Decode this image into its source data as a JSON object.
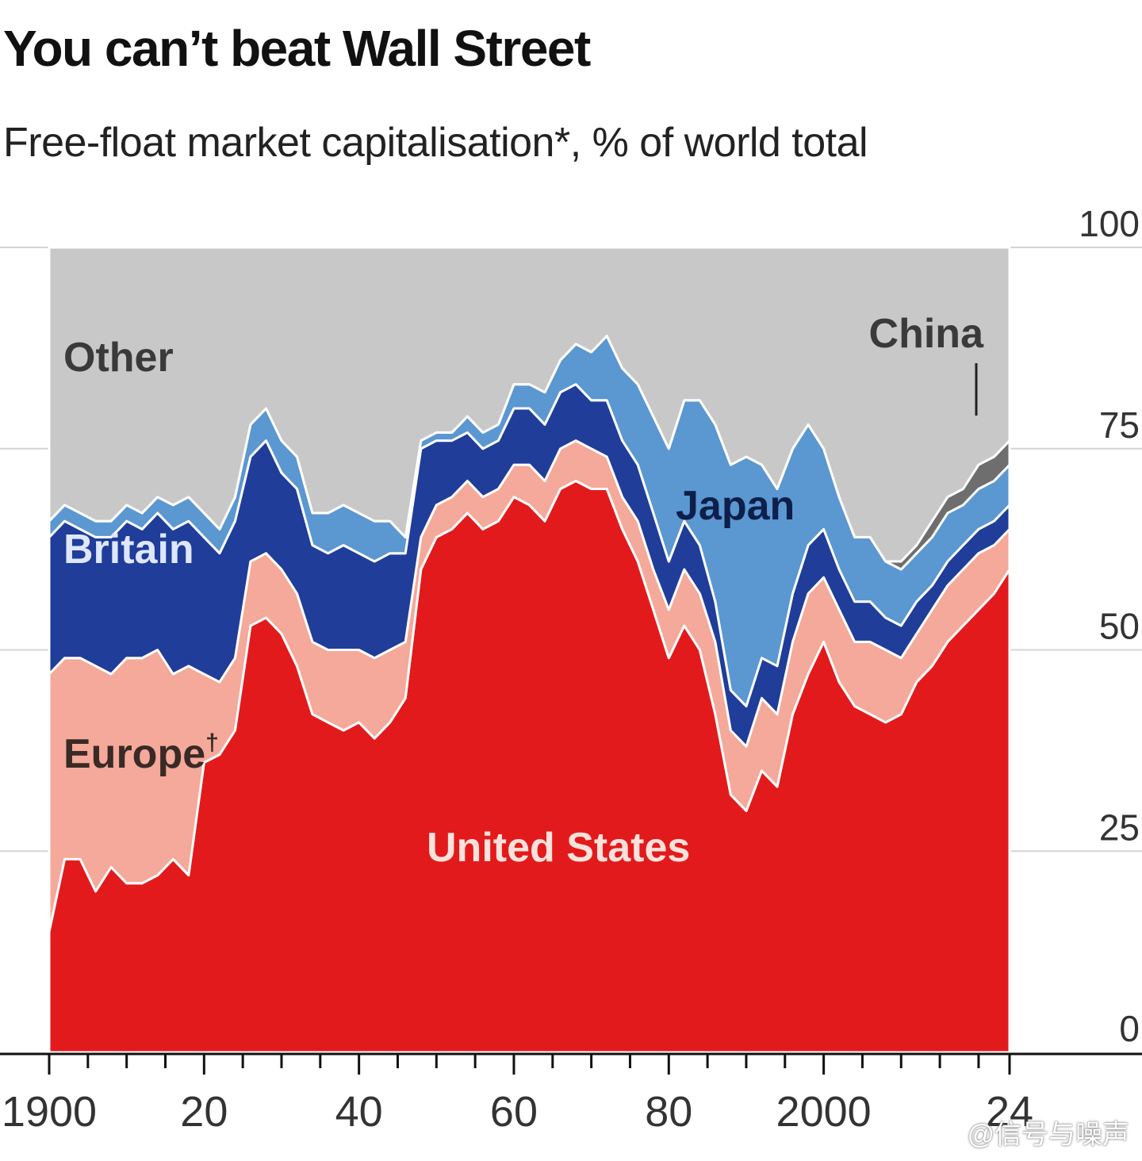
{
  "chart_data": {
    "type": "area",
    "stacked": true,
    "title": "You can’t beat Wall Street",
    "subtitle": "Free-float market capitalisation*, % of world total",
    "xlabel": "",
    "ylabel": "",
    "xlim": [
      1900,
      2024
    ],
    "ylim": [
      0,
      100
    ],
    "x_ticks_labeled": [
      "1900",
      "20",
      "40",
      "60",
      "80",
      "2000",
      "24"
    ],
    "x_tick_values": [
      1900,
      1920,
      1940,
      1960,
      1980,
      2000,
      2024
    ],
    "y_ticks": [
      "0",
      "25",
      "50",
      "75",
      "100"
    ],
    "y_tick_values": [
      0,
      25,
      50,
      75,
      100
    ],
    "y_axis_side": "right",
    "grid": "horizontal",
    "legend": "inline labels",
    "x": [
      1900,
      1902,
      1904,
      1906,
      1908,
      1910,
      1912,
      1914,
      1916,
      1918,
      1920,
      1922,
      1924,
      1926,
      1928,
      1930,
      1932,
      1934,
      1936,
      1938,
      1940,
      1942,
      1944,
      1946,
      1948,
      1950,
      1952,
      1954,
      1956,
      1958,
      1960,
      1962,
      1964,
      1966,
      1968,
      1970,
      1972,
      1974,
      1976,
      1978,
      1980,
      1982,
      1984,
      1986,
      1988,
      1990,
      1992,
      1994,
      1996,
      1998,
      2000,
      2002,
      2004,
      2006,
      2008,
      2010,
      2012,
      2014,
      2016,
      2018,
      2020,
      2022,
      2024
    ],
    "series": [
      {
        "name": "United States",
        "color": "#e31a1c",
        "values": [
          15,
          24,
          24,
          20,
          23,
          21,
          21,
          22,
          24,
          22,
          36,
          37,
          40,
          53,
          54,
          52,
          48,
          42,
          41,
          40,
          41,
          39,
          41,
          44,
          60,
          64,
          65,
          67,
          65,
          66,
          69,
          68,
          66,
          70,
          71,
          70,
          70,
          65,
          61,
          55,
          49,
          53,
          50,
          42,
          32,
          30,
          35,
          33,
          42,
          47,
          51,
          46,
          43,
          42,
          41,
          42,
          46,
          48,
          51,
          53,
          55,
          57,
          60
        ]
      },
      {
        "name": "Europe†",
        "color": "#f4a99a",
        "values": [
          32,
          25,
          25,
          28,
          24,
          28,
          28,
          28,
          23,
          26,
          11,
          9,
          9,
          8,
          8,
          8,
          9,
          9,
          9,
          10,
          9,
          10,
          9,
          7,
          4,
          4,
          4,
          4,
          4,
          4,
          4,
          5,
          5,
          5,
          5,
          5,
          4,
          4,
          5,
          5,
          6,
          7,
          7,
          9,
          8,
          8,
          9,
          9,
          9,
          10,
          8,
          9,
          8,
          9,
          9,
          7,
          6,
          7,
          7,
          7,
          7,
          6,
          5
        ]
      },
      {
        "name": "Britain",
        "color": "#1f3d99",
        "values": [
          17,
          17,
          16,
          16,
          17,
          17,
          16,
          17,
          18,
          18,
          17,
          16,
          17,
          13,
          14,
          12,
          13,
          12,
          12,
          13,
          12,
          12,
          12,
          11,
          11,
          8,
          7,
          6,
          6,
          6,
          7,
          7,
          7,
          7,
          7,
          6,
          7,
          7,
          7,
          7,
          6,
          6,
          6,
          5,
          5,
          5,
          5,
          6,
          6,
          6,
          6,
          5,
          5,
          5,
          4,
          4,
          4,
          3,
          3,
          3,
          3,
          3,
          3
        ]
      },
      {
        "name": "Japan",
        "color": "#5b97d1",
        "values": [
          2,
          2,
          2,
          2,
          2,
          2,
          2,
          2,
          3,
          3,
          3,
          3,
          3,
          4,
          4,
          4,
          4,
          4,
          5,
          5,
          5,
          5,
          4,
          2,
          1,
          1,
          1,
          2,
          2,
          2,
          3,
          3,
          4,
          4,
          5,
          6,
          8,
          9,
          10,
          12,
          14,
          15,
          18,
          22,
          28,
          31,
          24,
          22,
          18,
          15,
          10,
          9,
          8,
          8,
          7,
          7,
          6,
          6,
          6,
          5,
          5,
          5,
          5
        ]
      },
      {
        "name": "China",
        "color": "#6e6e6e",
        "values": [
          0,
          0,
          0,
          0,
          0,
          0,
          0,
          0,
          0,
          0,
          0,
          0,
          0,
          0,
          0,
          0,
          0,
          0,
          0,
          0,
          0,
          0,
          0,
          0,
          0,
          0,
          0,
          0,
          0,
          0,
          0,
          0,
          0,
          0,
          0,
          0,
          0,
          0,
          0,
          0,
          0,
          0,
          0,
          0,
          0,
          0,
          0,
          0,
          0,
          0,
          0,
          0,
          0,
          0,
          0,
          1,
          1,
          2,
          2,
          2,
          3,
          3,
          3
        ]
      },
      {
        "name": "Other",
        "color": "#c8c8c8",
        "values": [
          34,
          32,
          33,
          34,
          34,
          32,
          33,
          31,
          32,
          31,
          33,
          35,
          31,
          22,
          20,
          24,
          26,
          33,
          33,
          32,
          33,
          34,
          34,
          36,
          24,
          23,
          23,
          21,
          23,
          22,
          17,
          17,
          18,
          14,
          12,
          13,
          11,
          15,
          17,
          21,
          25,
          19,
          19,
          22,
          27,
          26,
          27,
          30,
          25,
          22,
          25,
          31,
          36,
          36,
          39,
          39,
          37,
          34,
          31,
          30,
          27,
          26,
          24
        ]
      }
    ],
    "labels": {
      "other": "Other",
      "britain": "Britain",
      "europe": "Europe",
      "europe_dagger": "†",
      "japan": "Japan",
      "china": "China",
      "united_states": "United States"
    }
  },
  "watermark": "@信号与噪声"
}
